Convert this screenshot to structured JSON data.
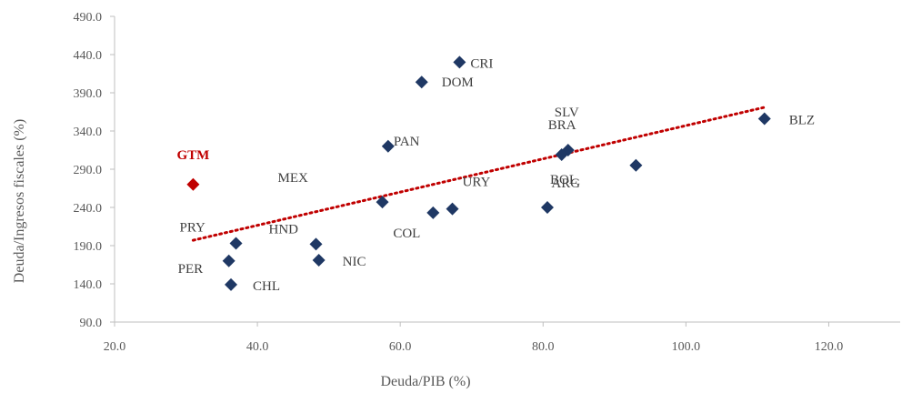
{
  "chart_data": {
    "type": "scatter",
    "xlabel": "Deuda/PIB (%)",
    "ylabel": "Deuda/Ingresos fiscales (%)",
    "xlim": [
      20,
      130
    ],
    "ylim": [
      90,
      490
    ],
    "x_ticks": [
      "20.0",
      "40.0",
      "60.0",
      "80.0",
      "100.0",
      "120.0"
    ],
    "y_ticks": [
      "90.0",
      "140.0",
      "190.0",
      "240.0",
      "290.0",
      "340.0",
      "390.0",
      "440.0",
      "490.0"
    ],
    "grid": false,
    "marker_color": "#1f3864",
    "highlight_color": "#c00000",
    "trendline_color": "#c00000",
    "trendline": {
      "style": "dotted",
      "x": [
        31,
        111
      ],
      "y": [
        197,
        371
      ]
    },
    "points": [
      {
        "label": "GTM",
        "x": 31.0,
        "y": 270,
        "highlight": true
      },
      {
        "label": "PRY",
        "x": 37.0,
        "y": 193
      },
      {
        "label": "PER",
        "x": 36.0,
        "y": 170
      },
      {
        "label": "CHL",
        "x": 36.3,
        "y": 139
      },
      {
        "label": "HND",
        "x": 48.2,
        "y": 192
      },
      {
        "label": "NIC",
        "x": 48.6,
        "y": 171
      },
      {
        "label": "MEX",
        "x": 57.5,
        "y": 247
      },
      {
        "label": "PAN",
        "x": 58.3,
        "y": 320
      },
      {
        "label": "DOM",
        "x": 63.0,
        "y": 404
      },
      {
        "label": "CRI",
        "x": 68.3,
        "y": 430
      },
      {
        "label": "COL",
        "x": 64.6,
        "y": 233
      },
      {
        "label": "URY",
        "x": 67.3,
        "y": 238
      },
      {
        "label": "BOL",
        "x": 80.6,
        "y": 240
      },
      {
        "label": "SLV",
        "x": 83.5,
        "y": 315
      },
      {
        "label": "BRA",
        "x": 82.6,
        "y": 309
      },
      {
        "label": "ARG",
        "x": 93.0,
        "y": 295
      },
      {
        "label": "BLZ",
        "x": 111.0,
        "y": 356
      }
    ]
  }
}
